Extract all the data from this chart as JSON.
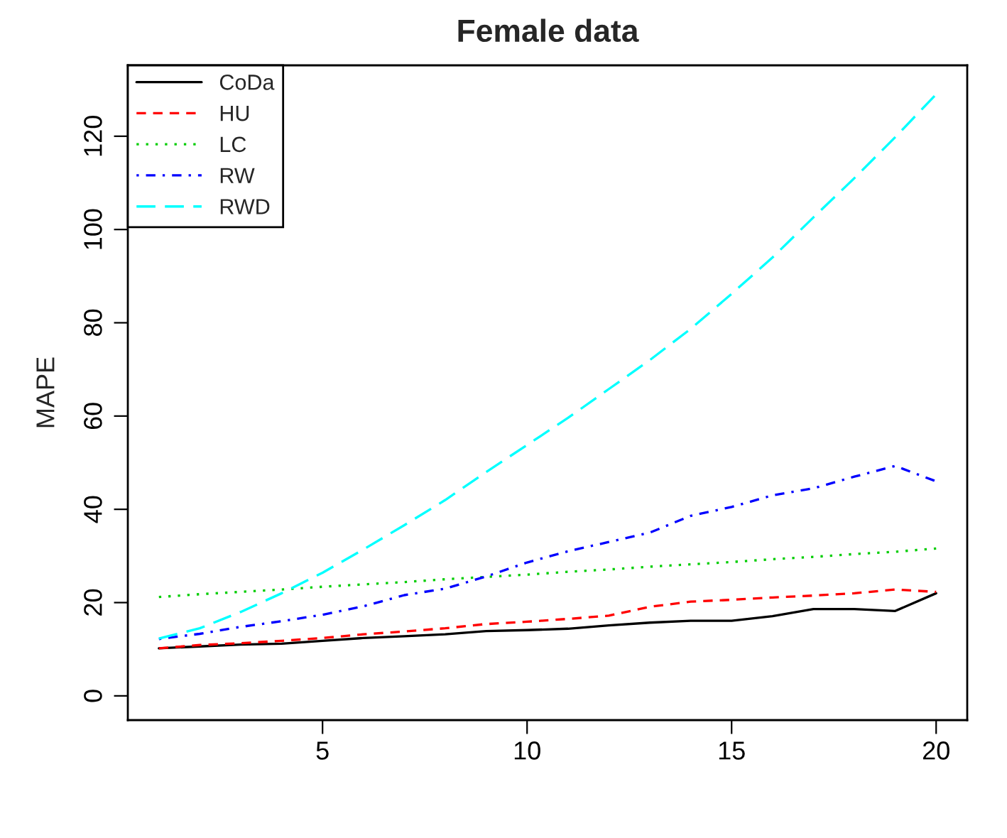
{
  "chart_data": {
    "type": "line",
    "title": "Female data",
    "ylabel": "MAPE",
    "x": [
      1,
      2,
      3,
      4,
      5,
      6,
      7,
      8,
      9,
      10,
      11,
      12,
      13,
      14,
      15,
      16,
      17,
      18,
      19,
      20
    ],
    "series": [
      {
        "name": "CoDa",
        "color": "#000000",
        "line_style": "solid",
        "values": [
          10.2,
          10.6,
          11,
          11.2,
          11.8,
          12.4,
          12.8,
          13.2,
          13.9,
          14.1,
          14.4,
          15.1,
          15.7,
          16.1,
          16.1,
          17.1,
          18.6,
          18.6,
          18.2,
          22
        ]
      },
      {
        "name": "HU",
        "color": "#ff0000",
        "line_style": "dashed",
        "values": [
          10.2,
          10.9,
          11.3,
          11.8,
          12.4,
          13.2,
          13.8,
          14.5,
          15.4,
          15.9,
          16.5,
          17.2,
          19.1,
          20.2,
          20.6,
          21.1,
          21.5,
          22,
          22.8,
          22.3
        ]
      },
      {
        "name": "LC",
        "color": "#00cd00",
        "line_style": "dotted",
        "values": [
          21.2,
          21.8,
          22.3,
          22.8,
          23.4,
          23.9,
          24.4,
          25,
          25.5,
          26,
          26.6,
          27.1,
          27.7,
          28.2,
          28.7,
          29.3,
          29.8,
          30.4,
          30.9,
          31.6
        ]
      },
      {
        "name": "RW",
        "color": "#0000ff",
        "line_style": "dashdot",
        "values": [
          12.2,
          13.3,
          14.8,
          16,
          17.4,
          19.2,
          21.6,
          23,
          25.6,
          28.6,
          31,
          33,
          35,
          38.6,
          40.5,
          43,
          44.5,
          47,
          49.3,
          46
        ]
      },
      {
        "name": "RWD",
        "color": "#00ffff",
        "line_style": "longdash",
        "values": [
          12.3,
          14.5,
          18,
          22,
          26.4,
          31.4,
          36.6,
          42,
          48,
          53.8,
          59.6,
          65.8,
          72,
          78.7,
          86.2,
          94,
          102.6,
          111,
          119.8,
          129
        ]
      }
    ],
    "xlim": [
      0.24,
      20.76
    ],
    "ylim": [
      -5.2,
      135.2
    ],
    "xticks": [
      5,
      10,
      15,
      20
    ],
    "yticks": [
      0,
      20,
      40,
      60,
      80,
      100,
      120
    ],
    "grid": false,
    "legend": "top left",
    "marker": "none"
  }
}
